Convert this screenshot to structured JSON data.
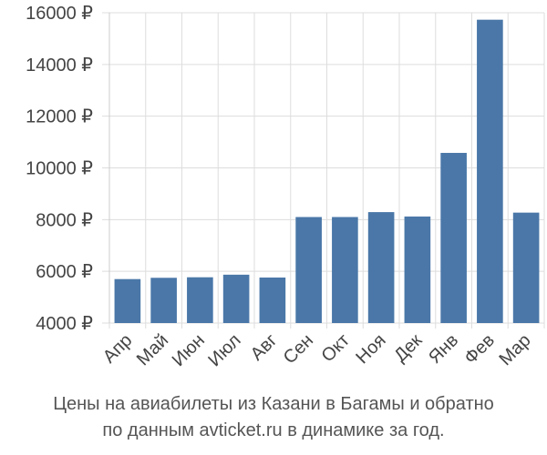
{
  "chart_data": {
    "type": "bar",
    "categories": [
      "Апр",
      "Май",
      "Июн",
      "Июл",
      "Авг",
      "Сен",
      "Окт",
      "Ноя",
      "Дек",
      "Янв",
      "Фев",
      "Мар"
    ],
    "values": [
      5700,
      5750,
      5770,
      5870,
      5760,
      8100,
      8100,
      8290,
      8120,
      10580,
      15730,
      8270
    ],
    "ylim": [
      4000,
      16000
    ],
    "yticks": [
      4000,
      6000,
      8000,
      10000,
      12000,
      14000,
      16000
    ],
    "ytick_labels": [
      "4000 ₽",
      "6000 ₽",
      "8000 ₽",
      "10000 ₽",
      "12000 ₽",
      "14000 ₽",
      "16000 ₽"
    ],
    "grid": true,
    "bar_color": "#4a77a8",
    "grid_color": "#dddddd"
  },
  "caption": {
    "line1": "Цены на авиабилеты из Казани в Багамы и обратно",
    "line2": "по данным avticket.ru в динамике за год."
  }
}
